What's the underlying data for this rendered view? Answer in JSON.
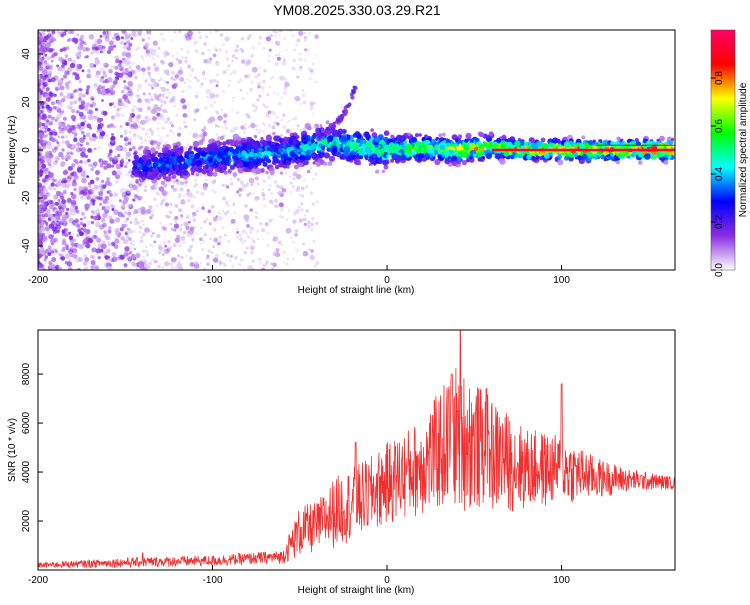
{
  "title": "YM08.2025.330.03.29.R21",
  "chart_data": [
    {
      "type": "heatmap",
      "title": "",
      "xlabel": "Height of straight line (km)",
      "ylabel": "Frequency (Hz)",
      "xlim": [
        -200,
        165
      ],
      "ylim": [
        -50,
        50
      ],
      "xticks": [
        -200,
        -100,
        0,
        100
      ],
      "yticks": [
        -40,
        -20,
        0,
        20,
        40
      ],
      "colorbar": {
        "label": "Normalized spectral amplitude",
        "ticks": [
          0.0,
          0.2,
          0.4,
          0.6,
          0.8
        ],
        "range": [
          0,
          1
        ],
        "colors": [
          "#ffffff",
          "#8a2be2",
          "#0000ff",
          "#00ffff",
          "#00ff00",
          "#ffff00",
          "#ff0000",
          "#ff0066"
        ]
      },
      "ridge": {
        "x": [
          -145,
          -120,
          -100,
          -80,
          -60,
          -45,
          -35,
          -25,
          -15,
          0,
          20,
          40,
          60,
          80,
          100,
          120,
          140,
          165
        ],
        "frequency": [
          -7,
          -5,
          -3,
          -2,
          -1,
          1,
          3,
          2,
          1,
          0,
          1,
          0,
          1,
          0,
          0,
          0,
          0,
          0
        ],
        "peak_amplitude": [
          0.35,
          0.4,
          0.4,
          0.45,
          0.45,
          0.5,
          0.5,
          0.55,
          0.6,
          0.65,
          0.7,
          0.75,
          0.78,
          0.82,
          0.85,
          0.88,
          0.9,
          0.92
        ]
      },
      "branch": {
        "x": [
          -40,
          -30,
          -22,
          -18
        ],
        "frequency": [
          5,
          10,
          18,
          27
        ]
      },
      "grid": false
    },
    {
      "type": "line",
      "title": "",
      "xlabel": "Height of straight line (km)",
      "ylabel": "SNR (10 * v/v)",
      "xlim": [
        -200,
        165
      ],
      "ylim": [
        0,
        9800
      ],
      "xticks": [
        -200,
        -100,
        0,
        100
      ],
      "yticks": [
        2000,
        4000,
        6000,
        8000
      ],
      "color": "#f03030",
      "envelope": {
        "x": [
          -200,
          -150,
          -100,
          -60,
          -50,
          -40,
          -30,
          -20,
          -10,
          0,
          20,
          40,
          60,
          80,
          100,
          120,
          140,
          165
        ],
        "lower": [
          80,
          100,
          150,
          250,
          500,
          700,
          900,
          1200,
          1400,
          1800,
          2200,
          2400,
          2300,
          2400,
          2600,
          2900,
          3200,
          3300
        ],
        "upper": [
          300,
          500,
          600,
          800,
          2600,
          2800,
          3800,
          4200,
          4600,
          5200,
          6200,
          8500,
          7000,
          5800,
          5500,
          4600,
          4100,
          3800
        ]
      },
      "peaks": [
        {
          "x": 42,
          "y": 9800
        },
        {
          "x": 37,
          "y": 8000
        },
        {
          "x": 57,
          "y": 7400
        },
        {
          "x": 100,
          "y": 7600
        },
        {
          "x": -18,
          "y": 5200
        },
        {
          "x": -140,
          "y": 700
        }
      ],
      "grid": false
    }
  ]
}
